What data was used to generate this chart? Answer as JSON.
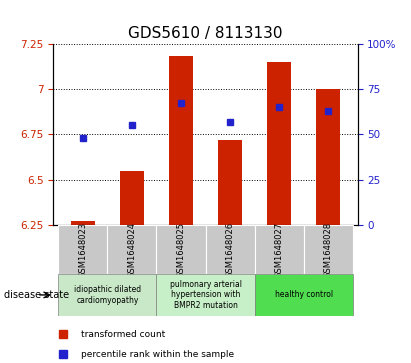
{
  "title": "GDS5610 / 8113130",
  "samples": [
    "GSM1648023",
    "GSM1648024",
    "GSM1648025",
    "GSM1648026",
    "GSM1648027",
    "GSM1648028"
  ],
  "bar_values": [
    6.27,
    6.55,
    7.18,
    6.72,
    7.15,
    7.0
  ],
  "percentile_values": [
    48,
    55,
    67,
    57,
    65,
    63
  ],
  "bar_bottom": 6.25,
  "ylim_left": [
    6.25,
    7.25
  ],
  "ylim_right": [
    0,
    100
  ],
  "yticks_left": [
    6.25,
    6.5,
    6.75,
    7.0,
    7.25
  ],
  "yticks_right": [
    0,
    25,
    50,
    75,
    100
  ],
  "ytick_labels_left": [
    "6.25",
    "6.5",
    "6.75",
    "7",
    "7.25"
  ],
  "ytick_labels_right": [
    "0",
    "25",
    "50",
    "75",
    "100%"
  ],
  "bar_color": "#cc2200",
  "dot_color": "#2222cc",
  "bg_color": "#c8c8c8",
  "disease_groups": [
    {
      "label": "idiopathic dilated\ncardiomyopathy",
      "samples": [
        0,
        1
      ],
      "color": "#c8e8c8"
    },
    {
      "label": "pulmonary arterial\nhypertension with\nBMPR2 mutation",
      "samples": [
        2,
        3
      ],
      "color": "#c8f0c8"
    },
    {
      "label": "healthy control",
      "samples": [
        4,
        5
      ],
      "color": "#50dd50"
    }
  ],
  "legend_red": "transformed count",
  "legend_blue": "percentile rank within the sample",
  "disease_state_label": "disease state",
  "title_fontsize": 11,
  "tick_fontsize": 7.5,
  "label_fontsize": 7.5
}
